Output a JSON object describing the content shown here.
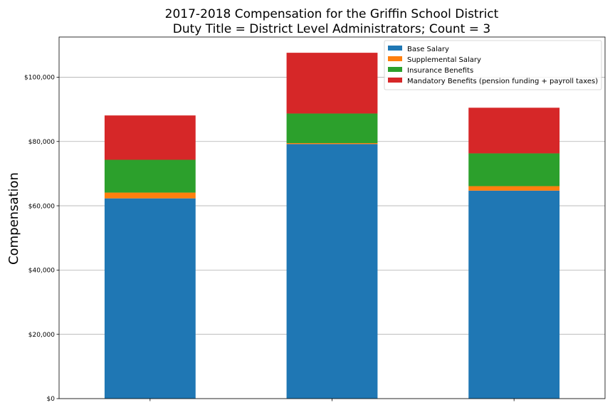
{
  "chart_data": {
    "type": "bar",
    "stacked": true,
    "title_lines": [
      "2017-2018 Compensation for the Griffin School District",
      "Duty Title = District Level Administrators; Count = 3"
    ],
    "ylabel": "Compensation",
    "xlabel": "",
    "ylim": [
      0,
      112500
    ],
    "yticks": [
      0,
      20000,
      40000,
      60000,
      80000,
      100000
    ],
    "ytick_labels": [
      "$0",
      "$20,000",
      "$40,000",
      "$60,000",
      "$80,000",
      "$100,000"
    ],
    "grid": "horizontal",
    "legend_position": "top-right",
    "categories": [
      "",
      "",
      ""
    ],
    "series": [
      {
        "name": "Base Salary",
        "color": "#1f77b4",
        "values": [
          62300,
          79200,
          64700
        ]
      },
      {
        "name": "Supplemental Salary",
        "color": "#ff7f0e",
        "values": [
          1800,
          300,
          1400
        ]
      },
      {
        "name": "Insurance Benefits",
        "color": "#2ca02c",
        "values": [
          10200,
          9200,
          10200
        ]
      },
      {
        "name": "Mandatory Benefits (pension funding + payroll taxes)",
        "color": "#d62728",
        "values": [
          13800,
          18900,
          14200
        ]
      }
    ]
  }
}
